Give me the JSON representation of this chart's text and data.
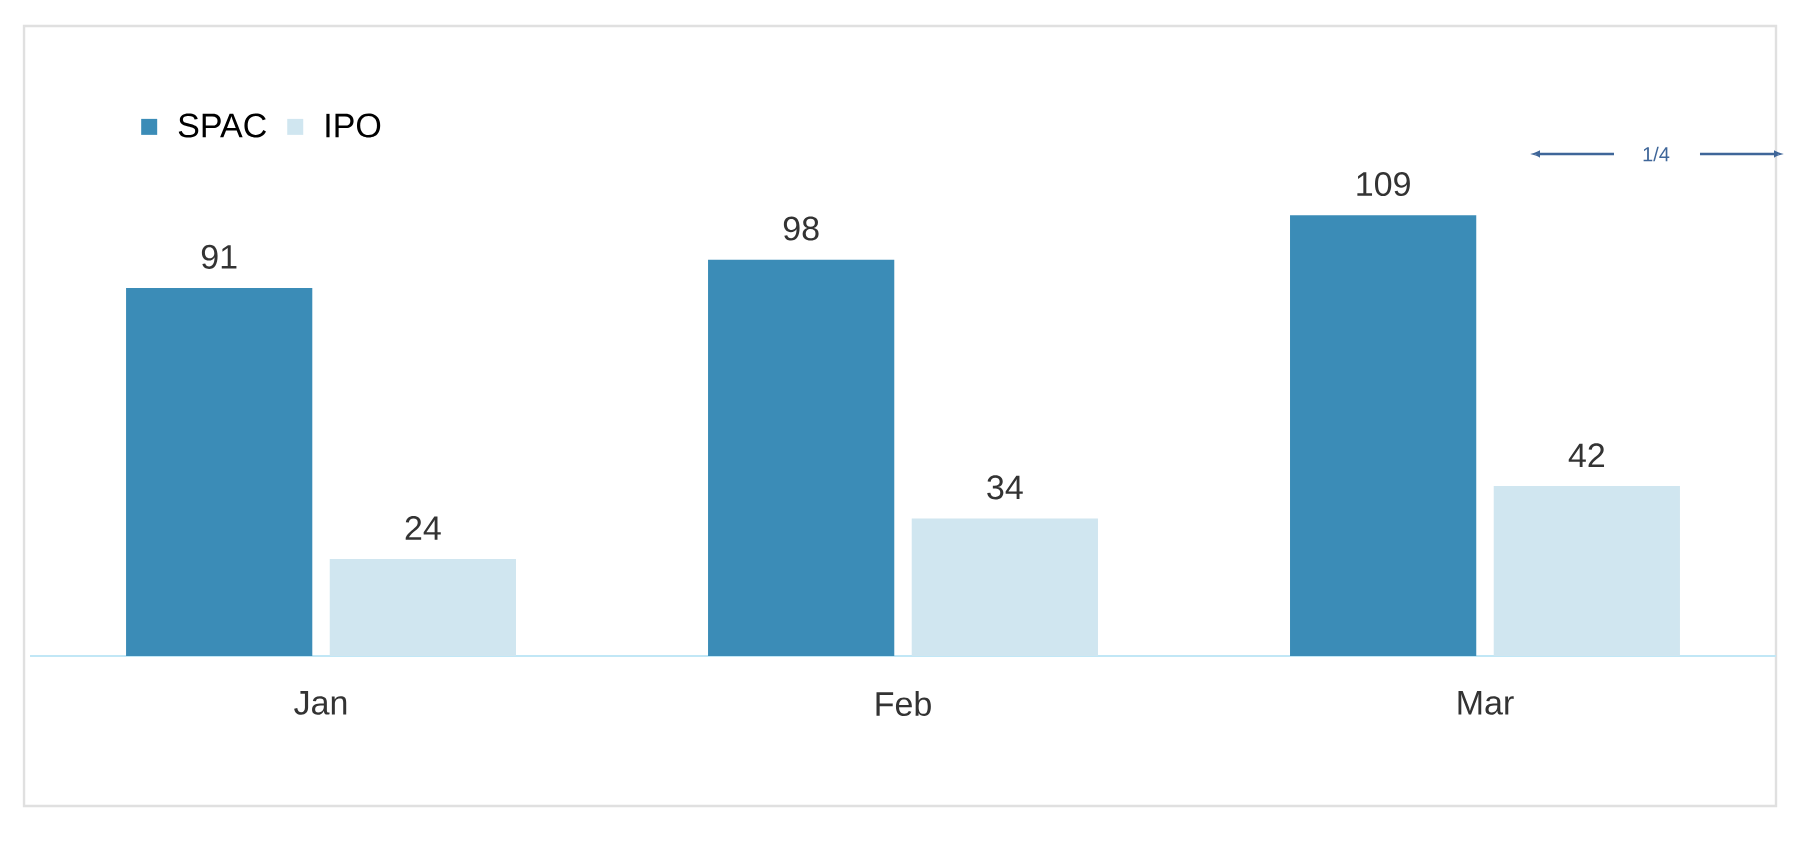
{
  "chart_data": {
    "type": "bar",
    "categories": [
      "Jan",
      "Feb",
      "Mar"
    ],
    "series": [
      {
        "name": "SPAC",
        "color": "#3b8cb7",
        "values": [
          91,
          98,
          109
        ]
      },
      {
        "name": "IPO",
        "color": "#d0e6f0",
        "values": [
          24,
          34,
          42
        ]
      }
    ],
    "data_labels": true,
    "legend": "top left",
    "annotations": [
      "1/4"
    ]
  }
}
